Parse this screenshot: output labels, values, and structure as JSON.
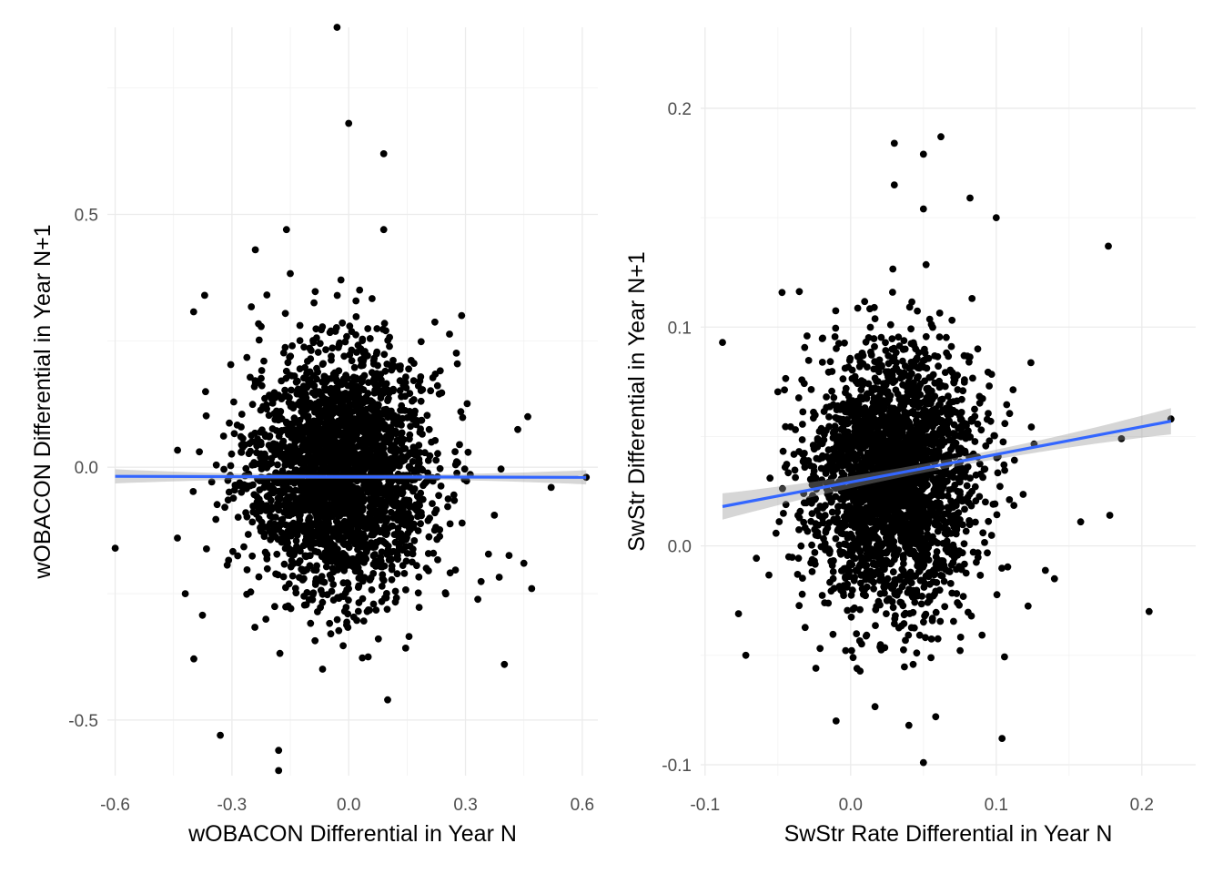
{
  "chart_data": [
    {
      "type": "scatter",
      "title": "",
      "xlabel": "wOBACON Differential in Year N",
      "ylabel": "wOBACON Differential in Year N+1",
      "xlim": [
        -0.62,
        0.64
      ],
      "ylim": [
        -0.61,
        0.87
      ],
      "xticks": [
        -0.6,
        -0.3,
        0.0,
        0.3,
        0.6
      ],
      "xtick_labels": [
        "-0.6",
        "-0.3",
        "0.0",
        "0.3",
        "0.6"
      ],
      "yticks": [
        -0.5,
        0.0,
        0.5
      ],
      "ytick_labels": [
        "-0.5",
        "0.0",
        "0.5"
      ],
      "grid": true,
      "point_color": "#000000",
      "cloud": {
        "n": 2600,
        "center": [
          -0.02,
          -0.01
        ],
        "sd": [
          0.12,
          0.12
        ],
        "xrange": [
          -0.6,
          0.61
        ],
        "yrange": [
          -0.61,
          0.87
        ]
      },
      "outliers": [
        {
          "x": -0.03,
          "y": 0.87
        },
        {
          "x": 0.0,
          "y": 0.68
        },
        {
          "x": 0.09,
          "y": 0.62
        },
        {
          "x": -0.6,
          "y": -0.16
        },
        {
          "x": -0.33,
          "y": -0.53
        },
        {
          "x": -0.18,
          "y": -0.56
        },
        {
          "x": -0.18,
          "y": -0.6
        },
        {
          "x": 0.1,
          "y": -0.46
        },
        {
          "x": 0.61,
          "y": -0.02
        },
        {
          "x": -0.37,
          "y": 0.34
        },
        {
          "x": 0.47,
          "y": -0.24
        },
        {
          "x": 0.45,
          "y": -0.19
        },
        {
          "x": 0.4,
          "y": -0.39
        },
        {
          "x": 0.46,
          "y": 0.1
        },
        {
          "x": 0.29,
          "y": 0.3
        },
        {
          "x": -0.24,
          "y": 0.43
        },
        {
          "x": -0.16,
          "y": 0.47
        },
        {
          "x": 0.09,
          "y": 0.47
        },
        {
          "x": -0.44,
          "y": -0.14
        },
        {
          "x": -0.42,
          "y": -0.25
        },
        {
          "x": 0.52,
          "y": -0.04
        }
      ],
      "fit": {
        "x": [
          -0.6,
          0.61
        ],
        "y": [
          -0.018,
          -0.02
        ],
        "ci_halfwidth_ends": 0.014,
        "ci_halfwidth_mid": 0.004,
        "color": "#3366ff"
      }
    },
    {
      "type": "scatter",
      "title": "",
      "xlabel": "SwStr Rate Differential in Year N",
      "ylabel": "SwStr Differential in Year N+1",
      "xlim": [
        -0.103,
        0.237
      ],
      "ylim": [
        -0.105,
        0.237
      ],
      "xticks": [
        -0.1,
        0.0,
        0.1,
        0.2
      ],
      "xtick_labels": [
        "-0.1",
        "0.0",
        "0.1",
        "0.2"
      ],
      "yticks": [
        -0.1,
        0.0,
        0.1,
        0.2
      ],
      "ytick_labels": [
        "-0.1",
        "0.0",
        "0.1",
        "0.2"
      ],
      "grid": true,
      "point_color": "#000000",
      "cloud": {
        "n": 2600,
        "center": [
          0.029,
          0.03
        ],
        "sd": [
          0.029,
          0.03
        ],
        "xrange": [
          -0.088,
          0.22
        ],
        "yrange": [
          -0.099,
          0.187
        ]
      },
      "outliers": [
        {
          "x": 0.062,
          "y": 0.187
        },
        {
          "x": 0.03,
          "y": 0.184
        },
        {
          "x": 0.05,
          "y": 0.179
        },
        {
          "x": 0.03,
          "y": 0.165
        },
        {
          "x": 0.082,
          "y": 0.159
        },
        {
          "x": 0.05,
          "y": 0.154
        },
        {
          "x": 0.1,
          "y": 0.15
        },
        {
          "x": -0.088,
          "y": 0.093
        },
        {
          "x": 0.177,
          "y": 0.137
        },
        {
          "x": 0.22,
          "y": 0.058
        },
        {
          "x": 0.205,
          "y": -0.03
        },
        {
          "x": 0.178,
          "y": 0.014
        },
        {
          "x": 0.05,
          "y": -0.099
        },
        {
          "x": 0.104,
          "y": -0.088
        },
        {
          "x": -0.01,
          "y": -0.08
        },
        {
          "x": 0.04,
          "y": -0.082
        },
        {
          "x": -0.072,
          "y": -0.05
        },
        {
          "x": -0.077,
          "y": -0.031
        },
        {
          "x": 0.158,
          "y": 0.011
        },
        {
          "x": 0.186,
          "y": 0.049
        },
        {
          "x": 0.14,
          "y": -0.015
        }
      ],
      "fit": {
        "x": [
          -0.088,
          0.22
        ],
        "y": [
          0.018,
          0.057
        ],
        "ci_halfwidth_ends": 0.006,
        "ci_halfwidth_mid": 0.002,
        "color": "#3366ff"
      }
    }
  ]
}
